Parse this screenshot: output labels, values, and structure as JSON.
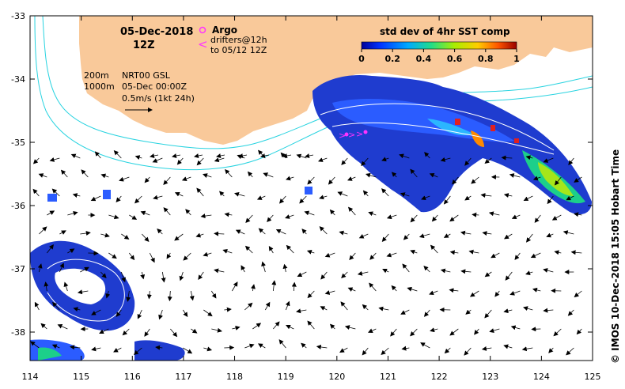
{
  "date": "05-Dec-2018",
  "hour": "12Z",
  "argo_label": "Argo",
  "drifters_line1": "drifters@12h",
  "drifters_line2": "to 05/12 12Z",
  "depth_200": "200m",
  "depth_1000": "1000m",
  "product_line1": "NRT00 GSL",
  "product_line2": "05-Dec 00:00Z",
  "scale_label": "0.5m/s (1kt 24h)",
  "colorbar": {
    "title": "std dev of 4hr SST comp",
    "ticks": [
      "0",
      "0.2",
      "0.4",
      "0.6",
      "0.8",
      "1"
    ]
  },
  "credit": "© IMOS 10-Dec-2018 15:05 Hobart Time",
  "x_ticks": [
    "114",
    "115",
    "116",
    "117",
    "118",
    "119",
    "120",
    "121",
    "122",
    "123",
    "124",
    "125"
  ],
  "y_ticks": [
    "-33",
    "-34",
    "-35",
    "-36",
    "-37",
    "-38"
  ],
  "colors": {
    "land": "#f9c99a",
    "isobath": "#28d3e0",
    "frame": "#000000",
    "argo": "#ff33ff"
  }
}
